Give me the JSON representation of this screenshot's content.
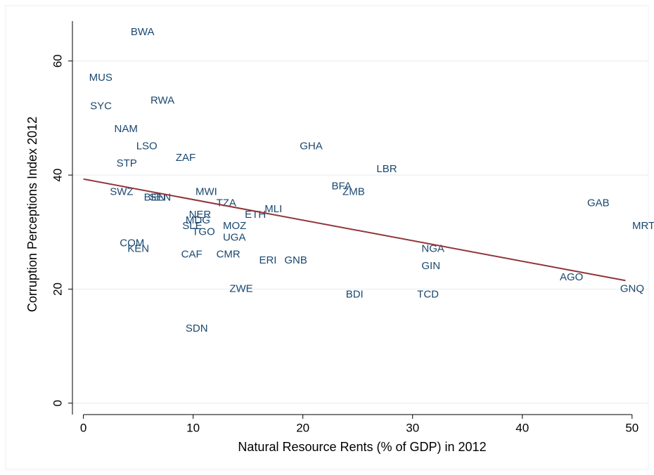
{
  "chart_data": {
    "type": "scatter",
    "x_label": "Natural Resource Rents (% of GDP) in 2012",
    "y_label": "Corruption Perceptions Index 2012",
    "labels": [
      "BWA",
      "MUS",
      "SYC",
      "RWA",
      "NAM",
      "LSO",
      "ZAF",
      "STP",
      "GHA",
      "LBR",
      "SWZ",
      "BEN",
      "SEN",
      "MWI",
      "BFA",
      "ZMB",
      "TZA",
      "GAB",
      "MLI",
      "ETH",
      "NER",
      "MDG",
      "SLE",
      "MOZ",
      "TGO",
      "MRT",
      "UGA",
      "COM",
      "KEN",
      "CAF",
      "CMR",
      "NGA",
      "ERI",
      "GNB",
      "GIN",
      "AGO",
      "GNQ",
      "ZWE",
      "BDI",
      "TCD",
      "SDN"
    ],
    "x": [
      3.8,
      0.0,
      0.1,
      5.6,
      2.3,
      4.3,
      7.9,
      2.5,
      19.2,
      26.2,
      1.9,
      5.0,
      5.5,
      9.7,
      22.1,
      23.1,
      11.6,
      45.4,
      16.0,
      14.2,
      9.1,
      8.8,
      8.5,
      12.2,
      9.4,
      49.5,
      12.2,
      2.8,
      3.5,
      8.4,
      11.6,
      30.3,
      15.5,
      17.8,
      30.3,
      42.9,
      48.4,
      12.8,
      23.4,
      29.9,
      8.8
    ],
    "y": [
      65,
      57,
      52,
      53,
      48,
      45,
      43,
      42,
      45,
      41,
      37,
      36,
      36,
      37,
      38,
      37,
      35,
      35,
      34,
      33,
      33,
      32,
      31,
      31,
      30,
      31,
      29,
      28,
      27,
      26,
      26,
      27,
      25,
      25,
      24,
      22,
      20,
      20,
      19,
      19,
      13
    ],
    "label_color": "#1a476f",
    "fit": {
      "x": [
        0,
        49.4
      ],
      "y": [
        39.3,
        21.5
      ],
      "color": "#90353b"
    },
    "xlim": [
      -1,
      52
    ],
    "ylim": [
      -2,
      67
    ],
    "xticks": [
      0,
      10,
      20,
      30,
      40,
      50
    ],
    "yticks": [
      0,
      20,
      40,
      60
    ],
    "grid": true
  }
}
